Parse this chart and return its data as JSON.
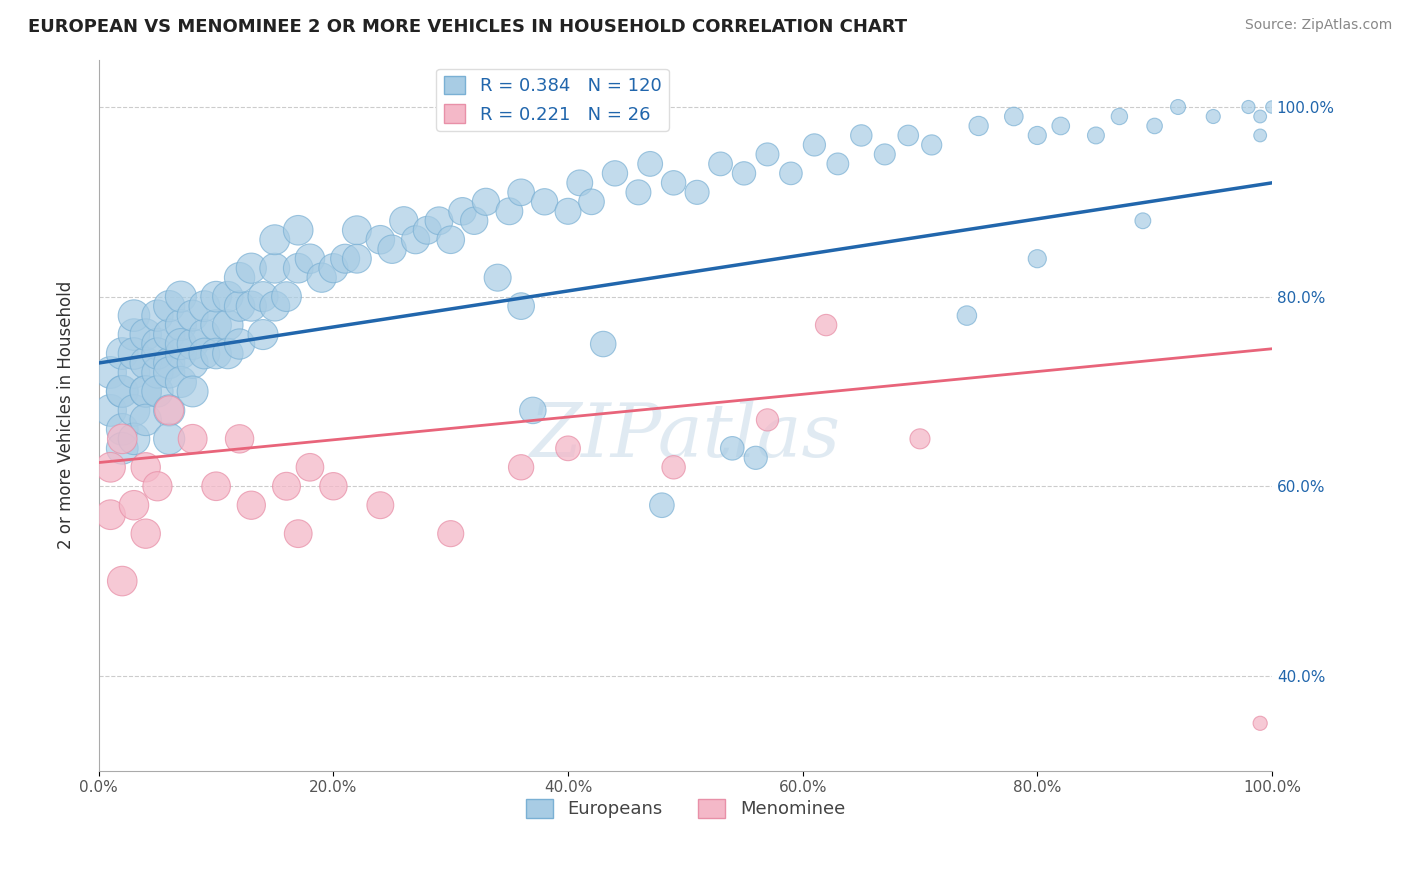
{
  "title": "EUROPEAN VS MENOMINEE 2 OR MORE VEHICLES IN HOUSEHOLD CORRELATION CHART",
  "source": "Source: ZipAtlas.com",
  "ylabel": "2 or more Vehicles in Household",
  "r_european": 0.384,
  "n_european": 120,
  "r_menominee": 0.221,
  "n_menominee": 26,
  "blue_color": "#a8cce4",
  "blue_edge_color": "#7ab0d4",
  "pink_color": "#f4b8c8",
  "pink_edge_color": "#e890a8",
  "blue_line_color": "#2166ac",
  "pink_line_color": "#e8647a",
  "watermark": "ZIPatlas",
  "xlim": [
    0.0,
    1.0
  ],
  "ylim": [
    0.3,
    1.05
  ],
  "x_ticks": [
    0.0,
    0.2,
    0.4,
    0.6,
    0.8,
    1.0
  ],
  "x_tick_labels": [
    "0.0%",
    "20.0%",
    "40.0%",
    "60.0%",
    "80.0%",
    "100.0%"
  ],
  "y_ticks": [
    0.4,
    0.6,
    0.8,
    1.0
  ],
  "y_tick_labels_right": [
    "40.0%",
    "60.0%",
    "80.0%",
    "100.0%"
  ],
  "blue_line_x": [
    0.0,
    1.0
  ],
  "blue_line_y": [
    0.73,
    0.92
  ],
  "pink_line_x": [
    0.0,
    1.0
  ],
  "pink_line_y": [
    0.625,
    0.745
  ],
  "eu_x": [
    0.01,
    0.01,
    0.02,
    0.02,
    0.02,
    0.02,
    0.02,
    0.03,
    0.03,
    0.03,
    0.03,
    0.03,
    0.03,
    0.04,
    0.04,
    0.04,
    0.04,
    0.04,
    0.05,
    0.05,
    0.05,
    0.05,
    0.05,
    0.06,
    0.06,
    0.06,
    0.06,
    0.06,
    0.06,
    0.07,
    0.07,
    0.07,
    0.07,
    0.07,
    0.08,
    0.08,
    0.08,
    0.08,
    0.09,
    0.09,
    0.09,
    0.1,
    0.1,
    0.1,
    0.11,
    0.11,
    0.11,
    0.12,
    0.12,
    0.12,
    0.13,
    0.13,
    0.14,
    0.14,
    0.15,
    0.15,
    0.15,
    0.16,
    0.17,
    0.17,
    0.18,
    0.19,
    0.2,
    0.21,
    0.22,
    0.22,
    0.24,
    0.25,
    0.26,
    0.27,
    0.28,
    0.29,
    0.3,
    0.31,
    0.32,
    0.33,
    0.35,
    0.36,
    0.38,
    0.4,
    0.41,
    0.42,
    0.44,
    0.46,
    0.47,
    0.49,
    0.51,
    0.53,
    0.55,
    0.57,
    0.59,
    0.61,
    0.63,
    0.65,
    0.67,
    0.69,
    0.71,
    0.75,
    0.78,
    0.8,
    0.82,
    0.85,
    0.87,
    0.9,
    0.92,
    0.95,
    0.98,
    0.99,
    0.99,
    1.0,
    0.34,
    0.43,
    0.56,
    0.36,
    0.48,
    0.54,
    0.37,
    0.74,
    0.8,
    0.89
  ],
  "eu_y": [
    0.68,
    0.72,
    0.7,
    0.74,
    0.66,
    0.7,
    0.64,
    0.72,
    0.76,
    0.68,
    0.74,
    0.78,
    0.65,
    0.7,
    0.73,
    0.76,
    0.7,
    0.67,
    0.72,
    0.75,
    0.78,
    0.7,
    0.74,
    0.73,
    0.76,
    0.79,
    0.72,
    0.68,
    0.65,
    0.74,
    0.77,
    0.8,
    0.71,
    0.75,
    0.75,
    0.78,
    0.73,
    0.7,
    0.76,
    0.79,
    0.74,
    0.77,
    0.8,
    0.74,
    0.77,
    0.74,
    0.8,
    0.75,
    0.79,
    0.82,
    0.79,
    0.83,
    0.76,
    0.8,
    0.79,
    0.83,
    0.86,
    0.8,
    0.83,
    0.87,
    0.84,
    0.82,
    0.83,
    0.84,
    0.87,
    0.84,
    0.86,
    0.85,
    0.88,
    0.86,
    0.87,
    0.88,
    0.86,
    0.89,
    0.88,
    0.9,
    0.89,
    0.91,
    0.9,
    0.89,
    0.92,
    0.9,
    0.93,
    0.91,
    0.94,
    0.92,
    0.91,
    0.94,
    0.93,
    0.95,
    0.93,
    0.96,
    0.94,
    0.97,
    0.95,
    0.97,
    0.96,
    0.98,
    0.99,
    0.97,
    0.98,
    0.97,
    0.99,
    0.98,
    1.0,
    0.99,
    1.0,
    0.97,
    0.99,
    1.0,
    0.82,
    0.75,
    0.63,
    0.79,
    0.58,
    0.64,
    0.68,
    0.78,
    0.84,
    0.88
  ],
  "men_x": [
    0.01,
    0.01,
    0.02,
    0.02,
    0.03,
    0.04,
    0.04,
    0.05,
    0.06,
    0.08,
    0.1,
    0.12,
    0.13,
    0.16,
    0.17,
    0.18,
    0.2,
    0.24,
    0.3,
    0.36,
    0.4,
    0.49,
    0.57,
    0.62,
    0.7,
    0.99
  ],
  "men_y": [
    0.62,
    0.57,
    0.65,
    0.5,
    0.58,
    0.55,
    0.62,
    0.6,
    0.68,
    0.65,
    0.6,
    0.65,
    0.58,
    0.6,
    0.55,
    0.62,
    0.6,
    0.58,
    0.55,
    0.62,
    0.64,
    0.62,
    0.67,
    0.77,
    0.65,
    0.35
  ]
}
